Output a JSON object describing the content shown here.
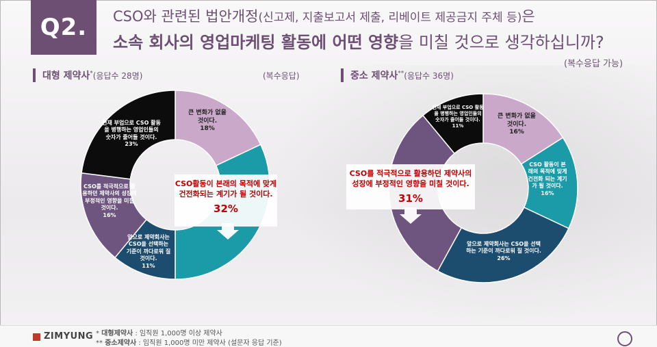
{
  "header": {
    "badge": "Q2.",
    "line1_main": "CSO와 관련된 법안개정",
    "line1_paren": "(신고제, 지출보고서 제출, 리베이트 제공금지 주체 등)",
    "line1_end": "은",
    "line2_bold": "소속 회사의 영업마케팅 활동에 어떤 영향",
    "line2_light": "을 미칠 것으로 생각하십니까?",
    "note": "(복수응답 가능)"
  },
  "colors": {
    "accent": "#6c4f73",
    "lavender": "#c9a8c9",
    "teal": "#1b9aa8",
    "navy": "#1c4c6e",
    "purple": "#6e5580",
    "black": "#0c0c0c",
    "callout_text": "#c00000"
  },
  "left": {
    "title": "대형 제약사",
    "title_mark": "*",
    "count": "(응답수 28명)",
    "note": "(복수응답)",
    "callout_line1": "CSO활동이 본래의 목적에 맞게",
    "callout_line2": "건전화되는 계기가 될 것이다.",
    "callout_pct": "32%"
  },
  "right": {
    "title": "중소 제약사",
    "title_mark": "**",
    "count": "(응답수 36명)",
    "callout_line1": "CSO를 적극적으로 활용하던 제약사의",
    "callout_line2": "성장에 부정적인 영향을 미칠 것이다.",
    "callout_pct": "31%"
  },
  "chart_data": [
    {
      "type": "pie",
      "title": "대형 제약사",
      "segments": [
        {
          "label": "큰 변화가 없을 것이다.",
          "value": 18,
          "color": "#c9a8c9"
        },
        {
          "label": "CSO활동이 본래의 목적에 맞게 건전화되는 계기가 될 것이다.",
          "value": 32,
          "color": "#1b9aa8"
        },
        {
          "label": "앞으로 제약회사는 CSO을 선택하는 기준이 까다로워 질 것이다.",
          "value": 11,
          "color": "#1c4c6e"
        },
        {
          "label": "CSO를 적극적으로 활용하던 제약사의 성장에 부정적인 영향을 미칠 것이다.",
          "value": 16,
          "color": "#6e5580"
        },
        {
          "label": "현재 부업으로 CSO 활동을 병행하는 영업인들의 숫자가 줄어들 것이다.",
          "value": 23,
          "color": "#0c0c0c"
        }
      ]
    },
    {
      "type": "pie",
      "title": "중소 제약사",
      "segments": [
        {
          "label": "큰 변화가 없을 것이다.",
          "value": 16,
          "color": "#c9a8c9"
        },
        {
          "label": "CSO 활동이 본래의 목적에 맞게 건전화 되는 계기가 될 것이다.",
          "value": 16,
          "color": "#1b9aa8"
        },
        {
          "label": "앞으로 제약회사는 CSO을 선택하는 기준이 까다로워 질 것이다.",
          "value": 26,
          "color": "#1c4c6e"
        },
        {
          "label": "CSO를 적극적으로 활용하던 제약사의 성장에 부정적인 영향을 미칠 것이다.",
          "value": 31,
          "color": "#6e5580"
        },
        {
          "label": "현재 부업으로 CSO 활동을 병행하는 영업인들의 숫자가 줄어들 것이다.",
          "value": 11,
          "color": "#0c0c0c"
        }
      ]
    }
  ],
  "footer": {
    "logo": "ZIMYUNG",
    "note1_mark": "*",
    "note1_bold": "대형제약사",
    "note1_text": ": 임직원 1,000명 이상 제약사",
    "note2_mark": "**",
    "note2_bold": "중소제약사",
    "note2_text": ": 임직원 1,000명 미만 제약사 (설문자 응답 기준)"
  }
}
